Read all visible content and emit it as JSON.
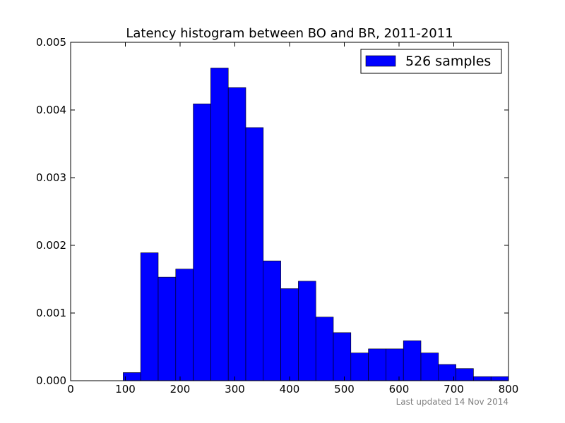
{
  "chart_data": {
    "type": "bar",
    "title": "Latency histogram between BO and BR, 2011-2011",
    "xlabel": "",
    "ylabel": "",
    "xlim": [
      0,
      800
    ],
    "ylim": [
      0,
      0.005
    ],
    "x_ticks": [
      0,
      100,
      200,
      300,
      400,
      500,
      600,
      700,
      800
    ],
    "x_tick_labels": [
      "0",
      "100",
      "200",
      "300",
      "400",
      "500",
      "600",
      "700",
      "800"
    ],
    "y_ticks": [
      0,
      0.001,
      0.002,
      0.003,
      0.004,
      0.005
    ],
    "y_tick_labels": [
      "0.000",
      "0.001",
      "0.002",
      "0.003",
      "0.004",
      "0.005"
    ],
    "grid": false,
    "legend_position": "top-right",
    "bin_edges": [
      96,
      128,
      160,
      192,
      224,
      256,
      288,
      320,
      352,
      384,
      416,
      448,
      480,
      512,
      544,
      576,
      608,
      640,
      672,
      704,
      736,
      768,
      800
    ],
    "series": [
      {
        "name": "526 samples",
        "color": "#0000ff",
        "values": [
          0.00012,
          0.00189,
          0.00153,
          0.00165,
          0.00409,
          0.00462,
          0.00433,
          0.00374,
          0.00177,
          0.00136,
          0.00147,
          0.00094,
          0.00071,
          0.00041,
          0.00047,
          0.00047,
          0.00059,
          0.00041,
          0.00024,
          0.00018,
          6e-05,
          6e-05
        ]
      }
    ]
  },
  "footer": "Last updated 14 Nov 2014"
}
